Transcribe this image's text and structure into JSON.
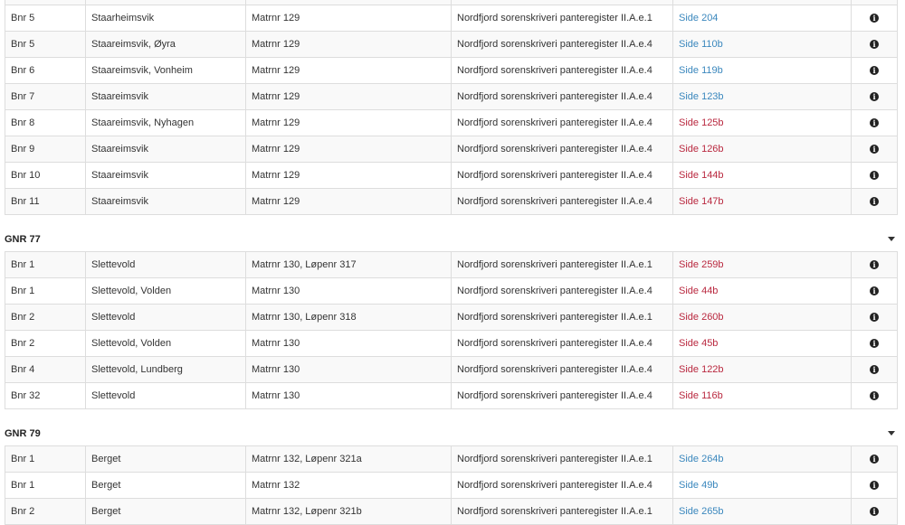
{
  "info_glyph": "i",
  "colors": {
    "link": "#3a87bd",
    "visited_link": "#b9283f"
  },
  "groups": [
    {
      "title": "",
      "rows": [
        {
          "bnr": "",
          "name": "",
          "matr": "",
          "source": "",
          "side": "",
          "link": "blue"
        },
        {
          "bnr": "Bnr 5",
          "name": "Staarheimsvik",
          "matr": "Matrnr 129",
          "source": "Nordfjord sorenskriveri panteregister II.A.e.1",
          "side": "Side 204",
          "link": "blue"
        },
        {
          "bnr": "Bnr 5",
          "name": "Staareimsvik, Øyra",
          "matr": "Matrnr 129",
          "source": "Nordfjord sorenskriveri panteregister II.A.e.4",
          "side": "Side 110b",
          "link": "blue"
        },
        {
          "bnr": "Bnr 6",
          "name": "Staareimsvik, Vonheim",
          "matr": "Matrnr 129",
          "source": "Nordfjord sorenskriveri panteregister II.A.e.4",
          "side": "Side 119b",
          "link": "blue"
        },
        {
          "bnr": "Bnr 7",
          "name": "Staareimsvik",
          "matr": "Matrnr 129",
          "source": "Nordfjord sorenskriveri panteregister II.A.e.4",
          "side": "Side 123b",
          "link": "blue"
        },
        {
          "bnr": "Bnr 8",
          "name": "Staareimsvik, Nyhagen",
          "matr": "Matrnr 129",
          "source": "Nordfjord sorenskriveri panteregister II.A.e.4",
          "side": "Side 125b",
          "link": "red"
        },
        {
          "bnr": "Bnr 9",
          "name": "Staareimsvik",
          "matr": "Matrnr 129",
          "source": "Nordfjord sorenskriveri panteregister II.A.e.4",
          "side": "Side 126b",
          "link": "red"
        },
        {
          "bnr": "Bnr 10",
          "name": "Staareimsvik",
          "matr": "Matrnr 129",
          "source": "Nordfjord sorenskriveri panteregister II.A.e.4",
          "side": "Side 144b",
          "link": "red"
        },
        {
          "bnr": "Bnr 11",
          "name": "Staareimsvik",
          "matr": "Matrnr 129",
          "source": "Nordfjord sorenskriveri panteregister II.A.e.4",
          "side": "Side 147b",
          "link": "red"
        }
      ]
    },
    {
      "title": "GNR 77",
      "rows": [
        {
          "bnr": "Bnr 1",
          "name": "Slettevold",
          "matr": "Matrnr 130, Løpenr 317",
          "source": "Nordfjord sorenskriveri panteregister II.A.e.1",
          "side": "Side 259b",
          "link": "red"
        },
        {
          "bnr": "Bnr 1",
          "name": "Slettevold, Volden",
          "matr": "Matrnr 130",
          "source": "Nordfjord sorenskriveri panteregister II.A.e.4",
          "side": "Side 44b",
          "link": "red"
        },
        {
          "bnr": "Bnr 2",
          "name": "Slettevold",
          "matr": "Matrnr 130, Løpenr 318",
          "source": "Nordfjord sorenskriveri panteregister II.A.e.1",
          "side": "Side 260b",
          "link": "red"
        },
        {
          "bnr": "Bnr 2",
          "name": "Slettevold, Volden",
          "matr": "Matrnr 130",
          "source": "Nordfjord sorenskriveri panteregister II.A.e.4",
          "side": "Side 45b",
          "link": "red"
        },
        {
          "bnr": "Bnr 4",
          "name": "Slettevold, Lundberg",
          "matr": "Matrnr 130",
          "source": "Nordfjord sorenskriveri panteregister II.A.e.4",
          "side": "Side 122b",
          "link": "red"
        },
        {
          "bnr": "Bnr 32",
          "name": "Slettevold",
          "matr": "Matrnr 130",
          "source": "Nordfjord sorenskriveri panteregister II.A.e.4",
          "side": "Side 116b",
          "link": "red"
        }
      ]
    },
    {
      "title": "GNR 79",
      "rows": [
        {
          "bnr": "Bnr 1",
          "name": "Berget",
          "matr": "Matrnr 132, Løpenr 321a",
          "source": "Nordfjord sorenskriveri panteregister II.A.e.1",
          "side": "Side 264b",
          "link": "blue"
        },
        {
          "bnr": "Bnr 1",
          "name": "Berget",
          "matr": "Matrnr 132",
          "source": "Nordfjord sorenskriveri panteregister II.A.e.4",
          "side": "Side 49b",
          "link": "blue"
        },
        {
          "bnr": "Bnr 2",
          "name": "Berget",
          "matr": "Matrnr 132, Løpenr 321b",
          "source": "Nordfjord sorenskriveri panteregister II.A.e.1",
          "side": "Side 265b",
          "link": "blue"
        }
      ]
    }
  ]
}
